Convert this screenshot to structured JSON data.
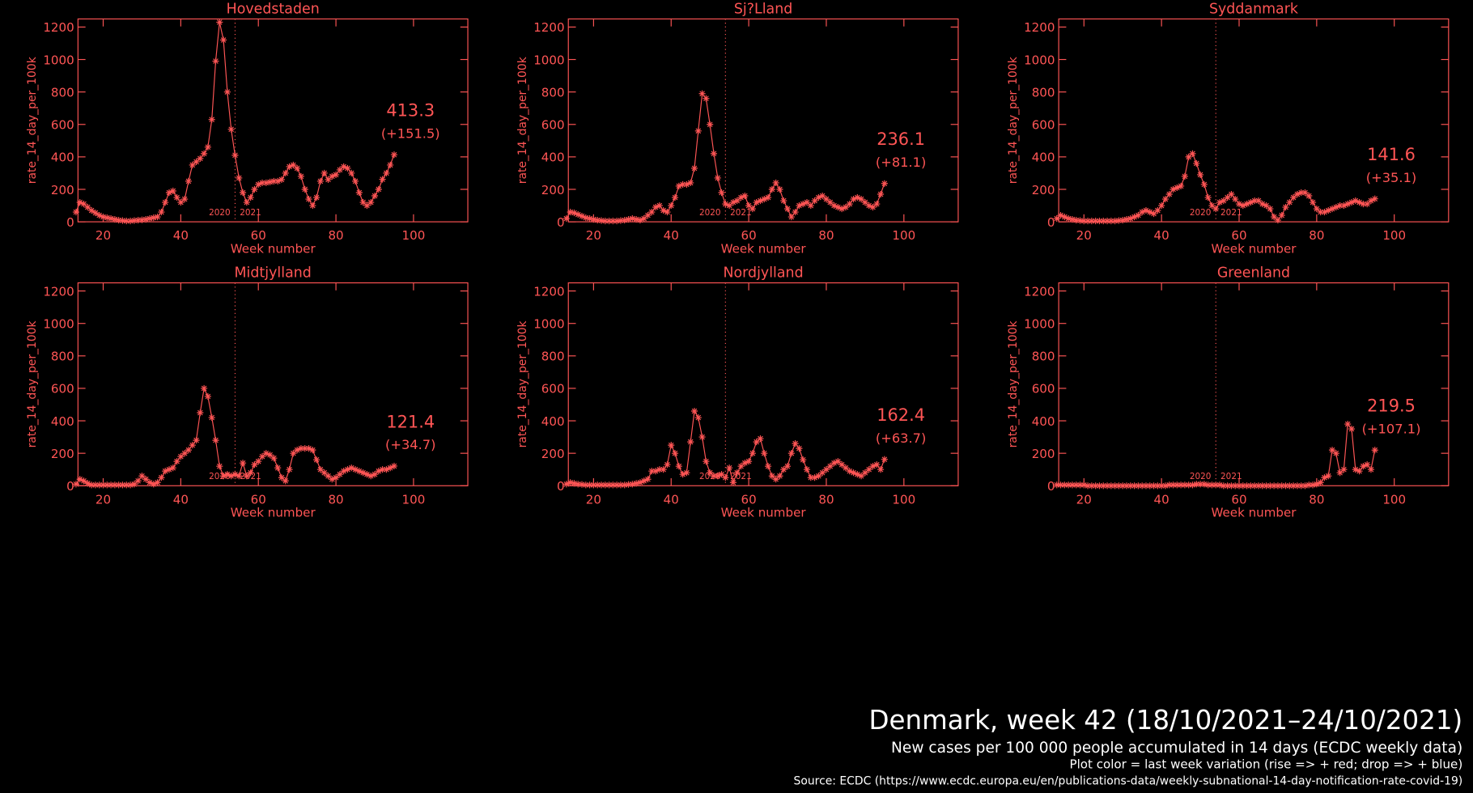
{
  "chart_data": [
    {
      "type": "line",
      "title": "Hovedstaden",
      "xlabel": "Week number",
      "ylabel": "rate_14_day_per_100k",
      "color": "#ff5555",
      "x": [
        13,
        14,
        15,
        16,
        17,
        18,
        19,
        20,
        21,
        22,
        23,
        24,
        25,
        26,
        27,
        28,
        29,
        30,
        31,
        32,
        33,
        34,
        35,
        36,
        37,
        38,
        39,
        40,
        41,
        42,
        43,
        44,
        45,
        46,
        47,
        48,
        49,
        50,
        51,
        52,
        53,
        54,
        55,
        56,
        57,
        58,
        59,
        60,
        61,
        62,
        63,
        64,
        65,
        66,
        67,
        68,
        69,
        70,
        71,
        72,
        73,
        74,
        75,
        76,
        77,
        78,
        79,
        80,
        81,
        82,
        83,
        84,
        85,
        86,
        87,
        88,
        89,
        90,
        91,
        92,
        93,
        94,
        95
      ],
      "values": [
        60,
        120,
        110,
        90,
        70,
        55,
        40,
        30,
        25,
        20,
        15,
        10,
        8,
        5,
        5,
        8,
        10,
        12,
        15,
        20,
        25,
        30,
        60,
        120,
        180,
        190,
        150,
        120,
        140,
        250,
        350,
        370,
        390,
        420,
        460,
        630,
        990,
        1230,
        1120,
        800,
        570,
        410,
        270,
        180,
        120,
        150,
        200,
        230,
        240,
        240,
        245,
        250,
        250,
        260,
        300,
        340,
        350,
        330,
        280,
        200,
        140,
        100,
        150,
        250,
        300,
        260,
        280,
        290,
        320,
        340,
        330,
        300,
        250,
        180,
        120,
        100,
        120,
        160,
        200,
        262,
        300,
        350,
        413.3
      ],
      "xlim": [
        13.5,
        114
      ],
      "ylim": [
        0,
        1250
      ],
      "xticks": [
        20,
        40,
        60,
        80,
        100
      ],
      "yticks": [
        0,
        200,
        400,
        600,
        800,
        1000,
        1200
      ],
      "year_break": 54,
      "year_labels": [
        "2020",
        "2021"
      ],
      "annotations": [
        "413.3",
        "(+151.5)"
      ]
    },
    {
      "type": "line",
      "title": "Sj?Lland",
      "xlabel": "Week number",
      "ylabel": "rate_14_day_per_100k",
      "color": "#ff5555",
      "x": [
        13,
        14,
        15,
        16,
        17,
        18,
        19,
        20,
        21,
        22,
        23,
        24,
        25,
        26,
        27,
        28,
        29,
        30,
        31,
        32,
        33,
        34,
        35,
        36,
        37,
        38,
        39,
        40,
        41,
        42,
        43,
        44,
        45,
        46,
        47,
        48,
        49,
        50,
        51,
        52,
        53,
        54,
        55,
        56,
        57,
        58,
        59,
        60,
        61,
        62,
        63,
        64,
        65,
        66,
        67,
        68,
        69,
        70,
        71,
        72,
        73,
        74,
        75,
        76,
        77,
        78,
        79,
        80,
        81,
        82,
        83,
        84,
        85,
        86,
        87,
        88,
        89,
        90,
        91,
        92,
        93,
        94,
        95
      ],
      "values": [
        20,
        60,
        55,
        45,
        35,
        25,
        20,
        15,
        10,
        8,
        5,
        5,
        5,
        5,
        8,
        10,
        15,
        20,
        15,
        10,
        20,
        40,
        60,
        90,
        100,
        70,
        60,
        100,
        150,
        220,
        230,
        230,
        240,
        330,
        560,
        790,
        760,
        600,
        420,
        270,
        180,
        110,
        100,
        120,
        130,
        150,
        160,
        100,
        80,
        120,
        130,
        140,
        150,
        200,
        240,
        200,
        130,
        80,
        30,
        60,
        100,
        110,
        120,
        100,
        130,
        150,
        160,
        140,
        120,
        100,
        90,
        80,
        90,
        110,
        140,
        150,
        140,
        120,
        100,
        90,
        110,
        170,
        236.1
      ],
      "xlim": [
        13.5,
        114
      ],
      "ylim": [
        0,
        1250
      ],
      "xticks": [
        20,
        40,
        60,
        80,
        100
      ],
      "yticks": [
        0,
        200,
        400,
        600,
        800,
        1000,
        1200
      ],
      "year_break": 54,
      "year_labels": [
        "2020",
        "2021"
      ],
      "annotations": [
        "236.1",
        "(+81.1)"
      ]
    },
    {
      "type": "line",
      "title": "Syddanmark",
      "xlabel": "Week number",
      "ylabel": "rate_14_day_per_100k",
      "color": "#ff5555",
      "x": [
        13,
        14,
        15,
        16,
        17,
        18,
        19,
        20,
        21,
        22,
        23,
        24,
        25,
        26,
        27,
        28,
        29,
        30,
        31,
        32,
        33,
        34,
        35,
        36,
        37,
        38,
        39,
        40,
        41,
        42,
        43,
        44,
        45,
        46,
        47,
        48,
        49,
        50,
        51,
        52,
        53,
        54,
        55,
        56,
        57,
        58,
        59,
        60,
        61,
        62,
        63,
        64,
        65,
        66,
        67,
        68,
        69,
        70,
        71,
        72,
        73,
        74,
        75,
        76,
        77,
        78,
        79,
        80,
        81,
        82,
        83,
        84,
        85,
        86,
        87,
        88,
        89,
        90,
        91,
        92,
        93,
        94,
        95
      ],
      "values": [
        20,
        40,
        30,
        20,
        15,
        10,
        8,
        5,
        5,
        5,
        5,
        5,
        5,
        5,
        5,
        5,
        8,
        10,
        15,
        20,
        30,
        40,
        60,
        70,
        60,
        50,
        70,
        100,
        140,
        170,
        200,
        210,
        220,
        280,
        400,
        420,
        360,
        290,
        230,
        150,
        100,
        80,
        120,
        130,
        150,
        170,
        140,
        110,
        100,
        110,
        120,
        130,
        130,
        110,
        100,
        80,
        30,
        10,
        40,
        90,
        120,
        150,
        170,
        180,
        180,
        160,
        120,
        80,
        60,
        60,
        70,
        80,
        90,
        100,
        100,
        110,
        120,
        130,
        120,
        110,
        110,
        130,
        141.6
      ],
      "xlim": [
        13.5,
        114
      ],
      "ylim": [
        0,
        1250
      ],
      "xticks": [
        20,
        40,
        60,
        80,
        100
      ],
      "yticks": [
        0,
        200,
        400,
        600,
        800,
        1000,
        1200
      ],
      "year_break": 54,
      "year_labels": [
        "2020",
        "2021"
      ],
      "annotations": [
        "141.6",
        "(+35.1)"
      ]
    },
    {
      "type": "line",
      "title": "Midtjylland",
      "xlabel": "Week number",
      "ylabel": "rate_14_day_per_100k",
      "color": "#ff5555",
      "x": [
        13,
        14,
        15,
        16,
        17,
        18,
        19,
        20,
        21,
        22,
        23,
        24,
        25,
        26,
        27,
        28,
        29,
        30,
        31,
        32,
        33,
        34,
        35,
        36,
        37,
        38,
        39,
        40,
        41,
        42,
        43,
        44,
        45,
        46,
        47,
        48,
        49,
        50,
        51,
        52,
        53,
        54,
        55,
        56,
        57,
        58,
        59,
        60,
        61,
        62,
        63,
        64,
        65,
        66,
        67,
        68,
        69,
        70,
        71,
        72,
        73,
        74,
        75,
        76,
        77,
        78,
        79,
        80,
        81,
        82,
        83,
        84,
        85,
        86,
        87,
        88,
        89,
        90,
        91,
        92,
        93,
        94,
        95
      ],
      "values": [
        10,
        40,
        30,
        15,
        5,
        5,
        5,
        5,
        5,
        5,
        5,
        5,
        5,
        5,
        5,
        10,
        30,
        60,
        40,
        20,
        10,
        20,
        50,
        90,
        100,
        110,
        150,
        180,
        200,
        220,
        250,
        280,
        450,
        600,
        550,
        420,
        280,
        120,
        60,
        70,
        60,
        70,
        60,
        140,
        60,
        80,
        130,
        150,
        180,
        200,
        190,
        170,
        110,
        50,
        30,
        100,
        200,
        220,
        230,
        230,
        230,
        220,
        160,
        100,
        80,
        60,
        40,
        50,
        70,
        90,
        100,
        110,
        100,
        90,
        80,
        70,
        60,
        70,
        90,
        100,
        100,
        110,
        121.4
      ],
      "xlim": [
        13.5,
        114
      ],
      "ylim": [
        0,
        1250
      ],
      "xticks": [
        20,
        40,
        60,
        80,
        100
      ],
      "yticks": [
        0,
        200,
        400,
        600,
        800,
        1000,
        1200
      ],
      "year_break": 54,
      "year_labels": [
        "2020",
        "2021"
      ],
      "annotations": [
        "121.4",
        "(+34.7)"
      ]
    },
    {
      "type": "line",
      "title": "Nordjylland",
      "xlabel": "Week number",
      "ylabel": "rate_14_day_per_100k",
      "color": "#ff5555",
      "x": [
        13,
        14,
        15,
        16,
        17,
        18,
        19,
        20,
        21,
        22,
        23,
        24,
        25,
        26,
        27,
        28,
        29,
        30,
        31,
        32,
        33,
        34,
        35,
        36,
        37,
        38,
        39,
        40,
        41,
        42,
        43,
        44,
        45,
        46,
        47,
        48,
        49,
        50,
        51,
        52,
        53,
        54,
        55,
        56,
        57,
        58,
        59,
        60,
        61,
        62,
        63,
        64,
        65,
        66,
        67,
        68,
        69,
        70,
        71,
        72,
        73,
        74,
        75,
        76,
        77,
        78,
        79,
        80,
        81,
        82,
        83,
        84,
        85,
        86,
        87,
        88,
        89,
        90,
        91,
        92,
        93,
        94,
        95
      ],
      "values": [
        10,
        20,
        15,
        10,
        8,
        5,
        5,
        5,
        5,
        5,
        5,
        5,
        5,
        5,
        5,
        5,
        8,
        10,
        15,
        20,
        30,
        40,
        90,
        90,
        100,
        100,
        130,
        250,
        200,
        120,
        70,
        80,
        270,
        460,
        420,
        300,
        150,
        80,
        60,
        60,
        70,
        50,
        110,
        20,
        80,
        120,
        140,
        150,
        200,
        270,
        290,
        200,
        120,
        60,
        40,
        60,
        100,
        120,
        200,
        260,
        230,
        160,
        100,
        50,
        50,
        60,
        80,
        100,
        120,
        140,
        150,
        130,
        110,
        90,
        80,
        70,
        60,
        80,
        100,
        120,
        130,
        100,
        162.4
      ],
      "xlim": [
        13.5,
        114
      ],
      "ylim": [
        0,
        1250
      ],
      "xticks": [
        20,
        40,
        60,
        80,
        100
      ],
      "yticks": [
        0,
        200,
        400,
        600,
        800,
        1000,
        1200
      ],
      "year_break": 54,
      "year_labels": [
        "2020",
        "2021"
      ],
      "annotations": [
        "162.4",
        "(+63.7)"
      ]
    },
    {
      "type": "line",
      "title": "Greenland",
      "xlabel": "Week number",
      "ylabel": "rate_14_day_per_100k",
      "color": "#ff5555",
      "x": [
        13,
        14,
        15,
        16,
        17,
        18,
        19,
        20,
        21,
        22,
        23,
        24,
        25,
        26,
        27,
        28,
        29,
        30,
        31,
        32,
        33,
        34,
        35,
        36,
        37,
        38,
        39,
        40,
        41,
        42,
        43,
        44,
        45,
        46,
        47,
        48,
        49,
        50,
        51,
        52,
        53,
        54,
        55,
        56,
        57,
        58,
        59,
        60,
        61,
        62,
        63,
        64,
        65,
        66,
        67,
        68,
        69,
        70,
        71,
        72,
        73,
        74,
        75,
        76,
        77,
        78,
        79,
        80,
        81,
        82,
        83,
        84,
        85,
        86,
        87,
        88,
        89,
        90,
        91,
        92,
        93,
        94,
        95
      ],
      "values": [
        5,
        5,
        5,
        5,
        5,
        5,
        5,
        5,
        0,
        0,
        0,
        0,
        0,
        0,
        0,
        0,
        0,
        0,
        0,
        0,
        0,
        0,
        0,
        0,
        0,
        0,
        0,
        0,
        0,
        5,
        5,
        5,
        5,
        5,
        5,
        5,
        10,
        10,
        10,
        5,
        5,
        5,
        5,
        0,
        0,
        0,
        0,
        0,
        0,
        0,
        0,
        0,
        0,
        0,
        0,
        0,
        0,
        0,
        0,
        0,
        0,
        0,
        0,
        0,
        0,
        5,
        5,
        10,
        20,
        50,
        60,
        220,
        200,
        80,
        100,
        380,
        350,
        100,
        90,
        120,
        130,
        100,
        219.5
      ],
      "xlim": [
        13.5,
        114
      ],
      "ylim": [
        0,
        1250
      ],
      "xticks": [
        20,
        40,
        60,
        80,
        100
      ],
      "yticks": [
        0,
        200,
        400,
        600,
        800,
        1000,
        1200
      ],
      "year_break": 54,
      "year_labels": [
        "2020",
        "2021"
      ],
      "annotations": [
        "219.5",
        "(+107.1)"
      ]
    }
  ],
  "footer": {
    "title": "Denmark, week 42 (18/10/2021–24/10/2021)",
    "subtitle": "New cases per 100 000 people accumulated in 14 days (ECDC weekly data)",
    "note": "Plot color = last week variation (rise => + red; drop => + blue)",
    "source": "Source: ECDC (https://www.ecdc.europa.eu/en/publications-data/weekly-subnational-14-day-notification-rate-covid-19)"
  }
}
